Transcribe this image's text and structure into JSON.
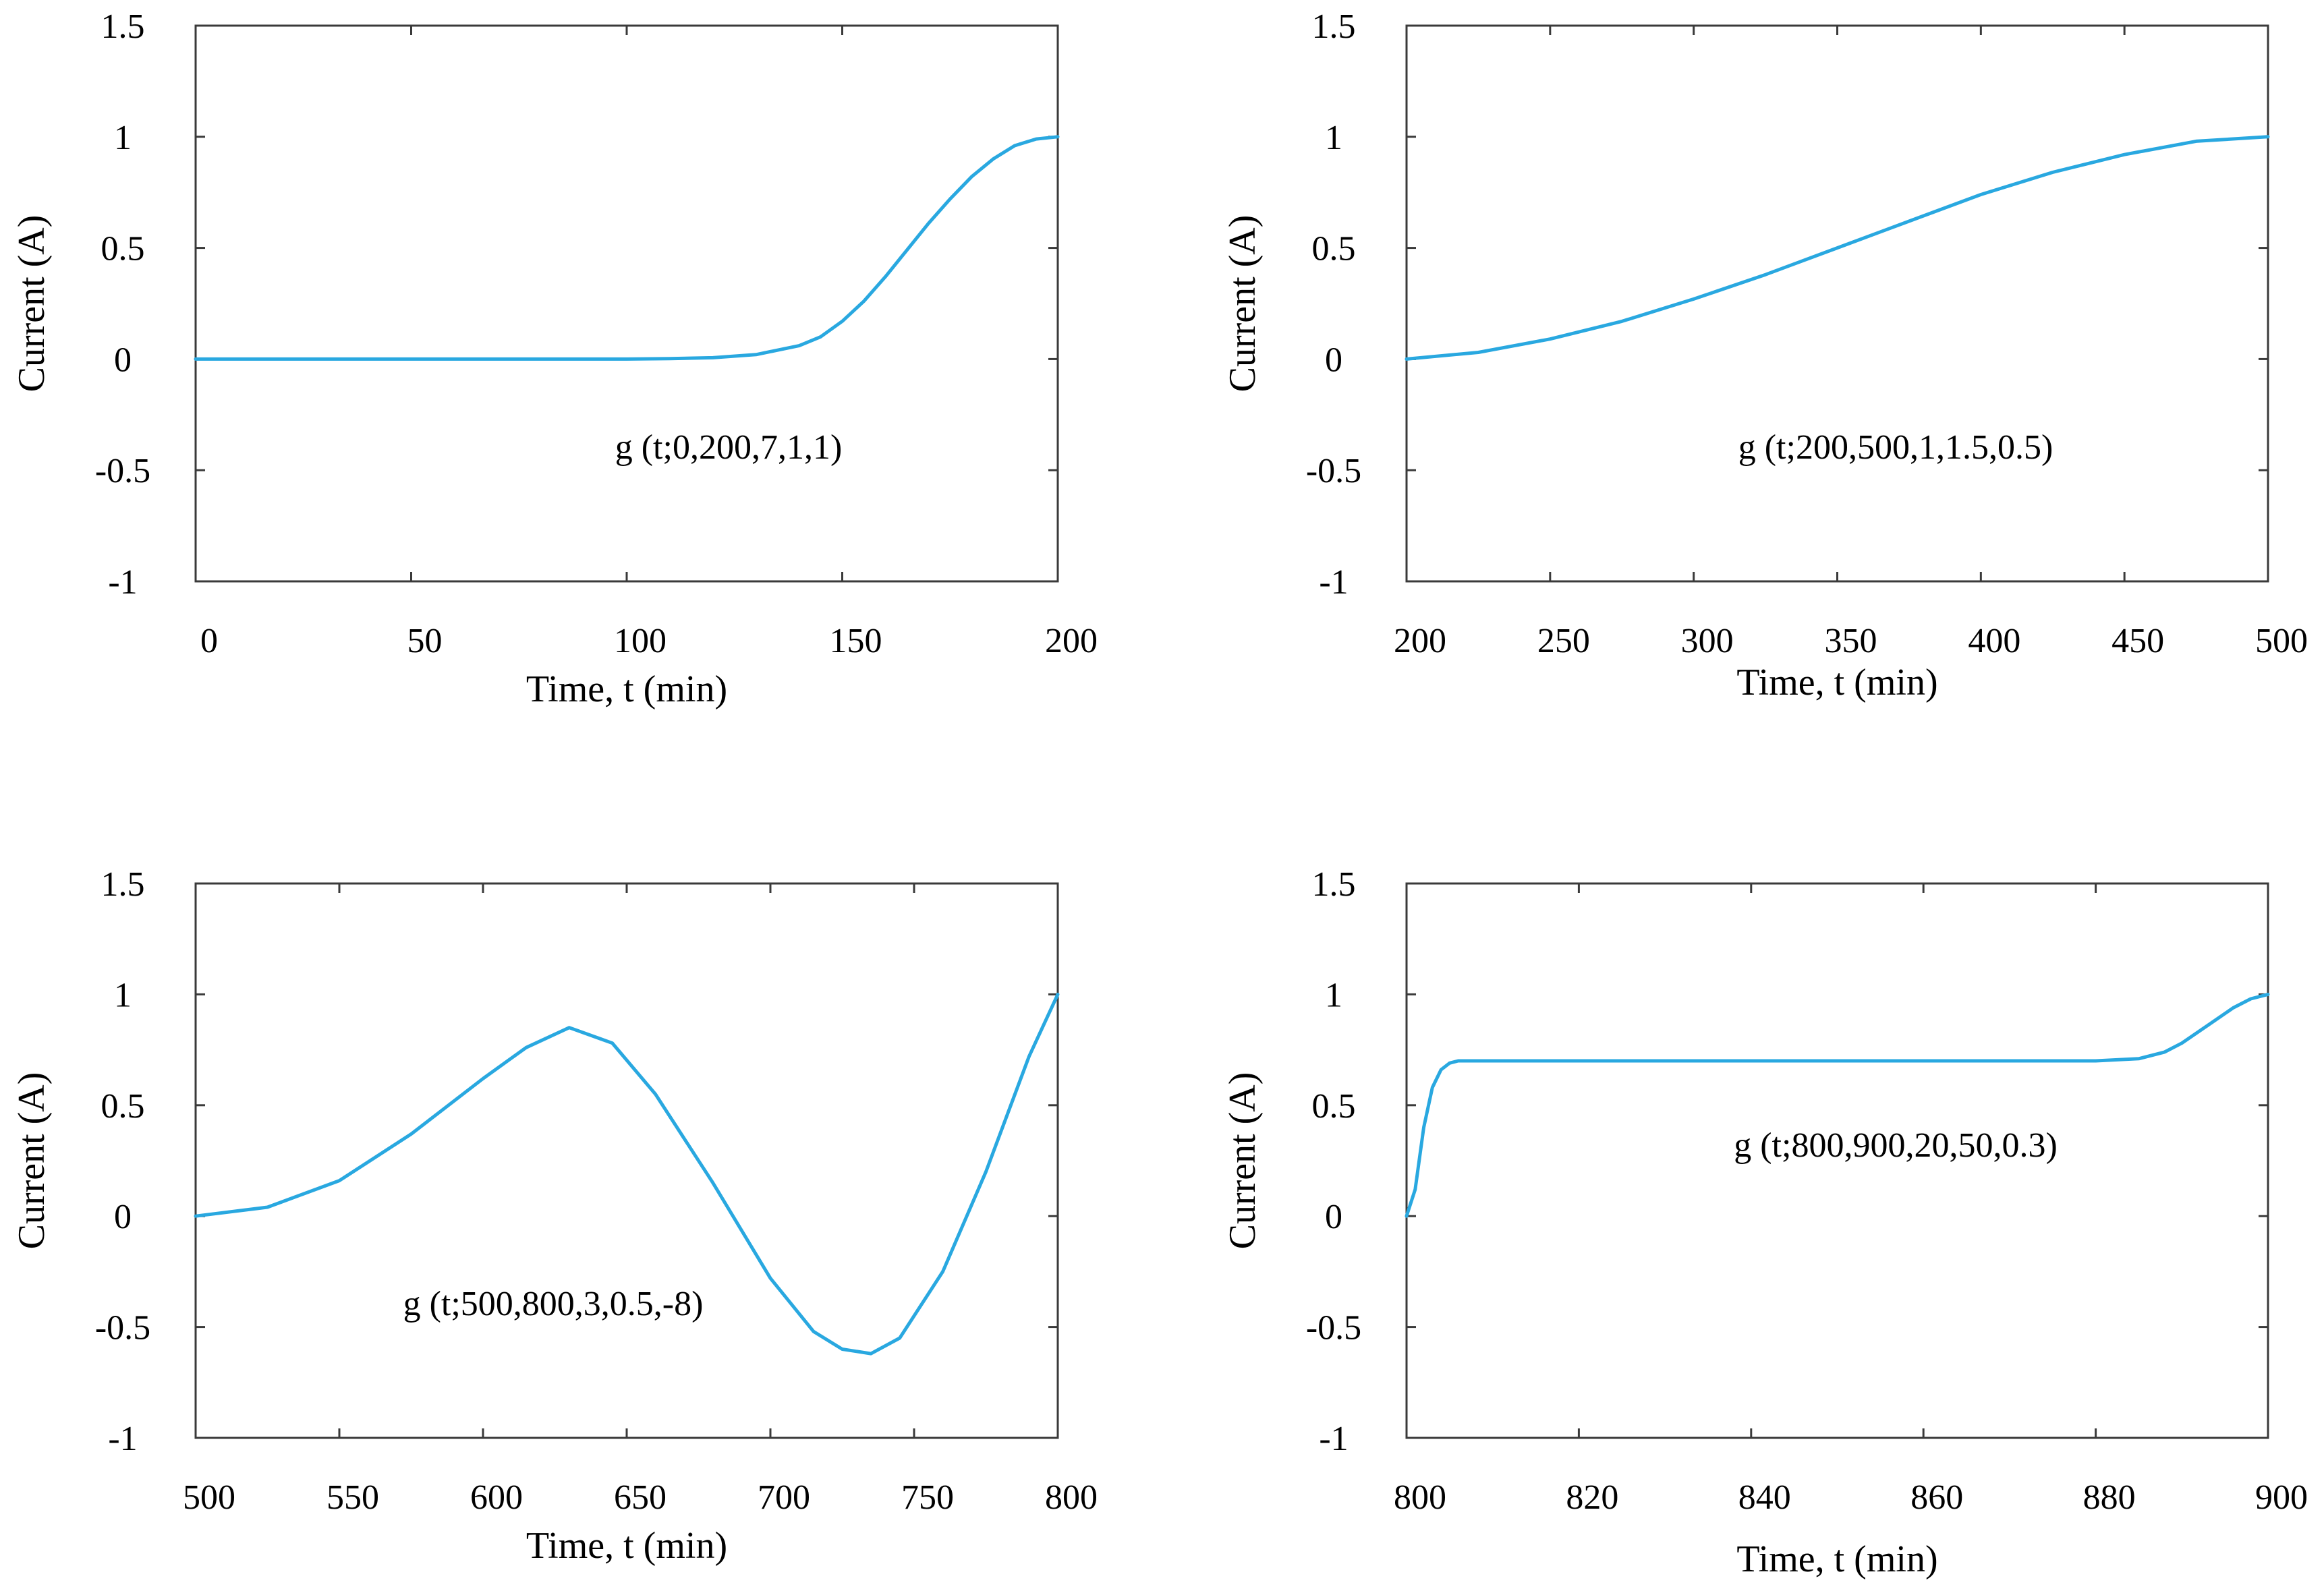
{
  "figure": {
    "background": "#ffffff",
    "axis_color": "#3a3a3a"
  },
  "chart_data": [
    {
      "type": "line",
      "title": "",
      "xlabel": "Time, t (min)",
      "ylabel": "Current (A)",
      "xlim": [
        0,
        200
      ],
      "ylim": [
        -1,
        1.5
      ],
      "xticks": [
        "0",
        "50",
        "100",
        "150",
        "200"
      ],
      "yticks": [
        "1.5",
        "1",
        "0.5",
        "0",
        "-0.5",
        "-1"
      ],
      "annotation": "g (t;0,200,7,1,1)",
      "grid": false,
      "series": [
        {
          "name": "g (t;0,200,7,1,1)",
          "color": "#29a8e0",
          "x": [
            0,
            20,
            40,
            60,
            80,
            100,
            110,
            120,
            130,
            140,
            145,
            150,
            155,
            160,
            165,
            170,
            175,
            180,
            185,
            190,
            195,
            200
          ],
          "y": [
            0,
            0,
            0,
            0,
            0,
            0,
            0.002,
            0.006,
            0.02,
            0.06,
            0.1,
            0.17,
            0.26,
            0.37,
            0.49,
            0.61,
            0.72,
            0.82,
            0.9,
            0.96,
            0.99,
            1.0
          ]
        }
      ]
    },
    {
      "type": "line",
      "title": "",
      "xlabel": "Time, t (min)",
      "ylabel": "Current (A)",
      "xlim": [
        200,
        500
      ],
      "ylim": [
        -1,
        1.5
      ],
      "xticks": [
        "200",
        "250",
        "300",
        "350",
        "400",
        "450",
        "500"
      ],
      "yticks": [
        "1.5",
        "1",
        "0.5",
        "0",
        "-0.5",
        "-1"
      ],
      "annotation": "g (t;200,500,1,1.5,0.5)",
      "grid": false,
      "series": [
        {
          "name": "g (t;200,500,1,1.5,0.5)",
          "color": "#29a8e0",
          "x": [
            200,
            225,
            250,
            275,
            300,
            325,
            350,
            375,
            400,
            425,
            450,
            475,
            500
          ],
          "y": [
            0,
            0.03,
            0.09,
            0.17,
            0.27,
            0.38,
            0.5,
            0.62,
            0.74,
            0.84,
            0.92,
            0.98,
            1.0
          ]
        }
      ]
    },
    {
      "type": "line",
      "title": "",
      "xlabel": "Time, t (min)",
      "ylabel": "Current (A)",
      "xlim": [
        500,
        800
      ],
      "ylim": [
        -1,
        1.5
      ],
      "xticks": [
        "500",
        "550",
        "600",
        "650",
        "700",
        "750",
        "800"
      ],
      "yticks": [
        "1.5",
        "1",
        "0.5",
        "0",
        "-0.5",
        "-1"
      ],
      "annotation": "g (t;500,800,3,0.5,-8)",
      "grid": false,
      "series": [
        {
          "name": "g (t;500,800,3,0.5,-8)",
          "color": "#29a8e0",
          "x": [
            500,
            525,
            550,
            575,
            600,
            615,
            630,
            645,
            660,
            680,
            700,
            715,
            725,
            735,
            745,
            760,
            775,
            790,
            800
          ],
          "y": [
            0,
            0.04,
            0.16,
            0.37,
            0.62,
            0.76,
            0.85,
            0.78,
            0.55,
            0.15,
            -0.28,
            -0.52,
            -0.6,
            -0.62,
            -0.55,
            -0.25,
            0.2,
            0.72,
            1.0
          ]
        }
      ]
    },
    {
      "type": "line",
      "title": "",
      "xlabel": "Time, t (min)",
      "ylabel": "Current (A)",
      "xlim": [
        800,
        900
      ],
      "ylim": [
        -1,
        1.5
      ],
      "xticks": [
        "800",
        "820",
        "840",
        "860",
        "880",
        "900"
      ],
      "yticks": [
        "1.5",
        "1",
        "0.5",
        "0",
        "-0.5",
        "-1"
      ],
      "annotation": "g (t;800,900,20,50,0.3)",
      "grid": false,
      "series": [
        {
          "name": "g (t;800,900,20,50,0.3)",
          "color": "#29a8e0",
          "x": [
            800,
            801,
            802,
            803,
            804,
            805,
            806,
            808,
            820,
            840,
            860,
            880,
            885,
            888,
            890,
            893,
            896,
            898,
            900
          ],
          "y": [
            0,
            0.12,
            0.4,
            0.58,
            0.66,
            0.69,
            0.7,
            0.7,
            0.7,
            0.7,
            0.7,
            0.7,
            0.71,
            0.74,
            0.78,
            0.86,
            0.94,
            0.98,
            1.0
          ]
        }
      ]
    }
  ]
}
